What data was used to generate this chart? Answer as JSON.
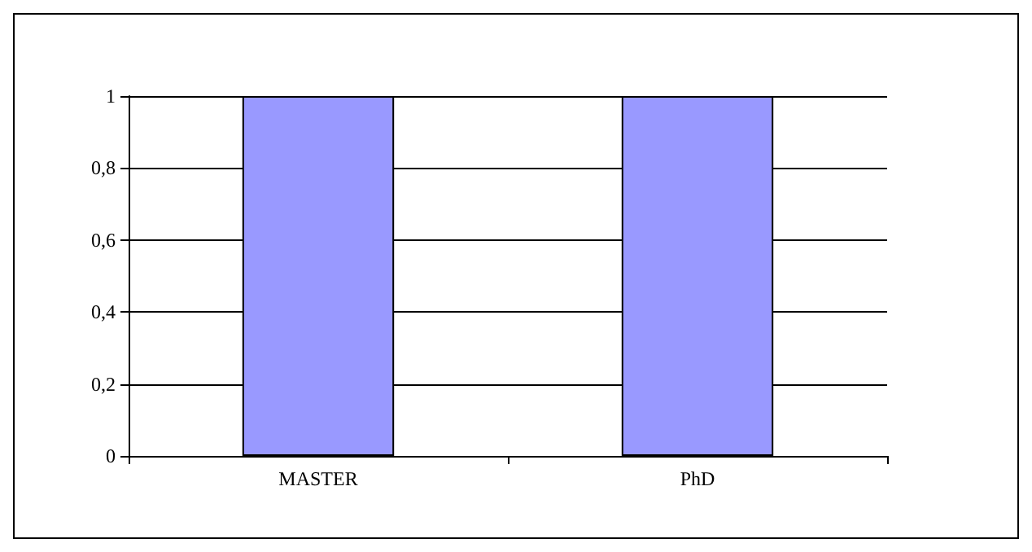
{
  "chart_data": {
    "type": "bar",
    "categories": [
      "MASTER",
      "PhD"
    ],
    "values": [
      1,
      1
    ],
    "color": "#9999ff",
    "ylim": [
      0,
      1
    ],
    "yticks": [
      0,
      {
        "value": 0.2,
        "label": "0,2"
      },
      {
        "value": 0.4,
        "label": "0,4"
      },
      {
        "value": 0.6,
        "label": "0,6"
      },
      {
        "value": 0.8,
        "label": "0,8"
      },
      1
    ],
    "grid": "y"
  }
}
